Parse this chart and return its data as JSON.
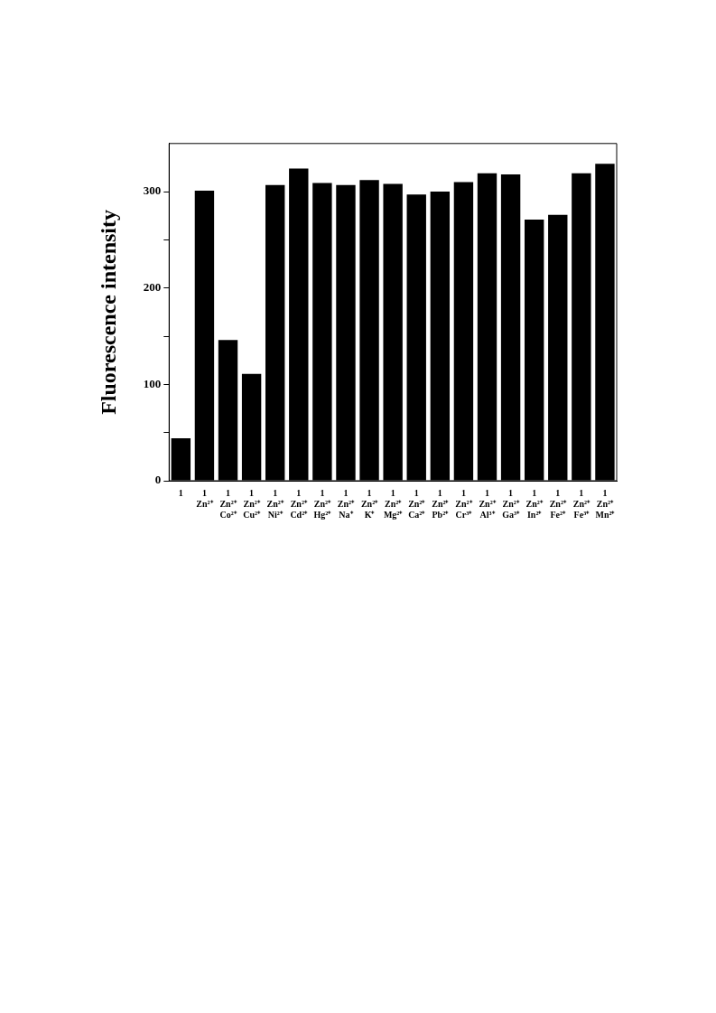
{
  "chart_data": {
    "type": "bar",
    "ylabel": "Fluorescence intensity",
    "categories": [
      "1",
      "1\nZn²⁺",
      "1\nZn²⁺\nCo²⁺",
      "1\nZn²⁺\nCu²⁺",
      "1\nZn²⁺\nNi²⁺",
      "1\nZn²⁺\nCd²⁺",
      "1\nZn²⁺\nHg²⁺",
      "1\nZn²⁺\nNa⁺",
      "1\nZn²⁺\nK⁺",
      "1\nZn²⁺\nMg²⁺",
      "1\nZn²⁺\nCa²⁺",
      "1\nZn²⁺\nPb²⁺",
      "1\nZn²⁺\nCr³⁺",
      "1\nZn²⁺\nAl³⁺",
      "1\nZn²⁺\nGa³⁺",
      "1\nZn²⁺\nIn²⁺",
      "1\nZn²⁺\nFe²⁺",
      "1\nZn²⁺\nFe³⁺",
      "1\nZn²⁺\nMn²⁺"
    ],
    "values": [
      44,
      301,
      146,
      111,
      307,
      324,
      309,
      307,
      312,
      308,
      297,
      300,
      310,
      319,
      318,
      271,
      276,
      319,
      329
    ],
    "color": "#000000",
    "ylim": [
      0,
      350
    ],
    "yticks": [
      0,
      {
        "value": 50,
        "label": null
      },
      100,
      {
        "value": 150,
        "label": null
      },
      200,
      {
        "value": 250,
        "label": null
      },
      300
    ],
    "grid": false
  }
}
